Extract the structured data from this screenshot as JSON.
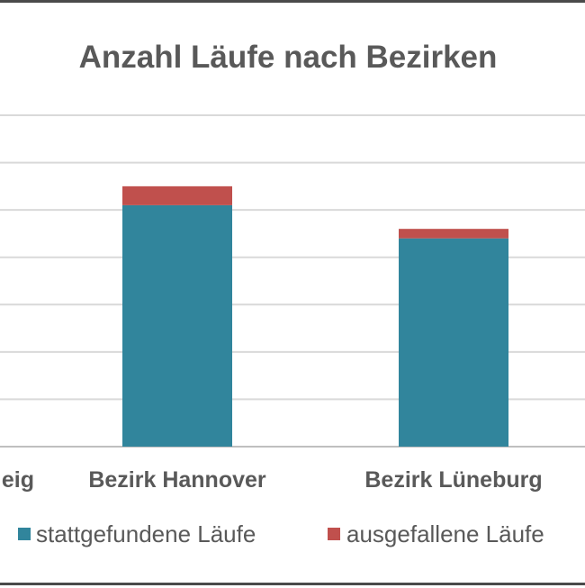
{
  "chart_data": {
    "type": "bar",
    "stacked": true,
    "title": "Anzahl Läufe nach Bezirken",
    "categories": [
      "Bezirk Braunschweig",
      "Bezirk Hannover",
      "Bezirk Lüneburg"
    ],
    "visible_category_text": [
      "eig",
      "Bezirk Hannover",
      "Bezirk Lüneburg"
    ],
    "series": [
      {
        "name": "stattgefundene Läufe",
        "color": "#31859C",
        "values": [
          null,
          5.1,
          4.4
        ]
      },
      {
        "name": "ausgefallene Läufe",
        "color": "#C0504D",
        "values": [
          null,
          0.4,
          0.2
        ]
      }
    ],
    "ylim": [
      0,
      7
    ],
    "grid": true,
    "legend": "bottom",
    "xlabel": "",
    "ylabel": ""
  }
}
